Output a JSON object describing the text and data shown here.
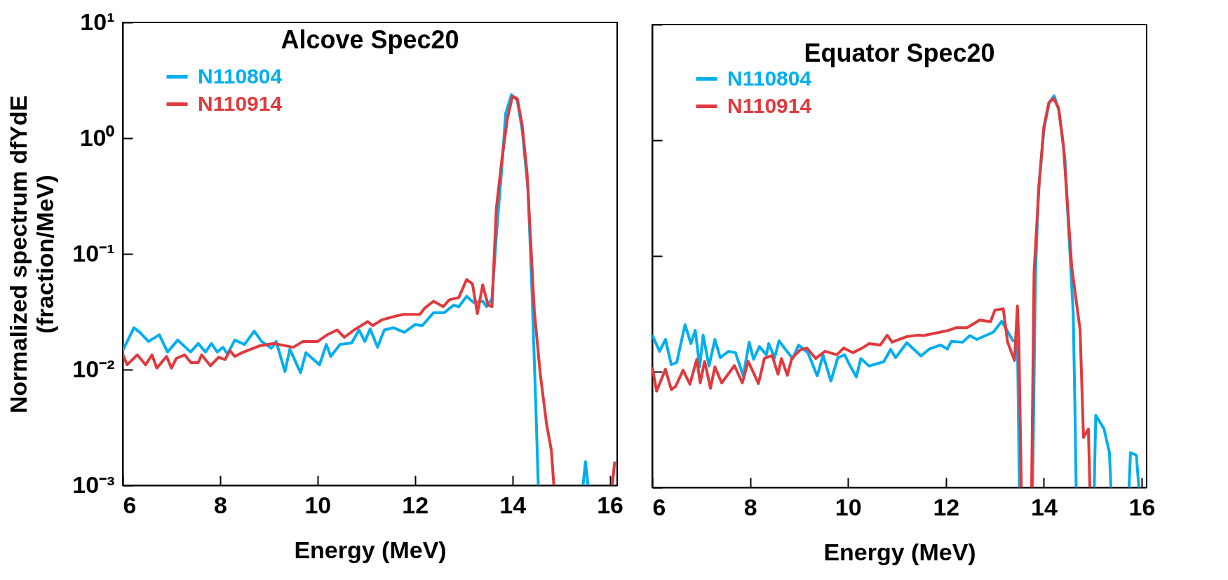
{
  "chart_data": [
    {
      "type": "line",
      "title": "Alcove Spec20",
      "xlabel": "Energy (MeV)",
      "ylabel": "Normalized spectrum dfYdE (fraction/MeV)",
      "log": true,
      "legend": "top left",
      "xlim": [
        6,
        16.15
      ],
      "xticks": [
        6,
        8,
        10,
        12,
        14,
        16
      ],
      "ylim": [
        0.001,
        10
      ],
      "yticks": [
        {
          "value": 0.001,
          "label": "10⁻³"
        },
        {
          "value": 0.01,
          "label": "10⁻²"
        },
        {
          "value": 0.1,
          "label": "10⁻¹"
        },
        {
          "value": 1,
          "label": "10⁰"
        },
        {
          "value": 10,
          "label": "10¹"
        }
      ],
      "series": [
        {
          "name": "N110804",
          "color": "#00aeef",
          "x": [
            6.0,
            6.23,
            6.35,
            6.53,
            6.75,
            6.92,
            7.13,
            7.39,
            7.55,
            7.7,
            7.82,
            7.94,
            8.06,
            8.15,
            8.3,
            8.5,
            8.7,
            8.85,
            9.05,
            9.15,
            9.33,
            9.43,
            9.65,
            9.76,
            10.04,
            10.18,
            10.27,
            10.46,
            10.7,
            10.85,
            10.97,
            11.08,
            11.23,
            11.37,
            11.56,
            11.78,
            12.0,
            12.15,
            12.38,
            12.6,
            12.79,
            12.9,
            13.06,
            13.2,
            13.39,
            13.47,
            13.58,
            13.67,
            13.8,
            13.86,
            13.98,
            14.1,
            14.2,
            14.32,
            14.4,
            14.48,
            14.53,
            15.0,
            15.45,
            15.5,
            15.55
          ],
          "values": [
            0.0146,
            0.023,
            0.021,
            0.0175,
            0.02,
            0.0142,
            0.018,
            0.0142,
            0.0168,
            0.0142,
            0.0168,
            0.0142,
            0.0156,
            0.0136,
            0.018,
            0.0165,
            0.0215,
            0.0175,
            0.0153,
            0.0175,
            0.0096,
            0.015,
            0.0094,
            0.014,
            0.011,
            0.0165,
            0.013,
            0.0165,
            0.017,
            0.022,
            0.0175,
            0.0225,
            0.0156,
            0.022,
            0.023,
            0.021,
            0.0245,
            0.024,
            0.031,
            0.031,
            0.036,
            0.035,
            0.043,
            0.038,
            0.039,
            0.035,
            0.041,
            0.144,
            0.69,
            1.63,
            2.37,
            2.12,
            1.18,
            0.36,
            0.05,
            0.0049,
            0.001,
            null,
            0.001,
            0.0016,
            0.001
          ]
        },
        {
          "name": "N110914",
          "color": "#e03a3e",
          "x": [
            6.0,
            6.09,
            6.3,
            6.47,
            6.6,
            6.7,
            6.9,
            7.0,
            7.1,
            7.27,
            7.4,
            7.55,
            7.62,
            7.8,
            7.97,
            8.1,
            8.2,
            8.3,
            8.45,
            8.8,
            9.1,
            9.5,
            9.7,
            10.0,
            10.2,
            10.4,
            10.55,
            10.75,
            11.03,
            11.13,
            11.33,
            11.6,
            11.77,
            12.1,
            12.2,
            12.38,
            12.58,
            12.7,
            12.9,
            13.06,
            13.18,
            13.28,
            13.39,
            13.5,
            13.58,
            13.67,
            13.79,
            13.9,
            14.0,
            14.1,
            14.2,
            14.3,
            14.45,
            14.57,
            14.7,
            14.8,
            14.85,
            15.5,
            16.05,
            16.1
          ],
          "values": [
            0.0136,
            0.011,
            0.0134,
            0.011,
            0.0134,
            0.0103,
            0.013,
            0.0103,
            0.0125,
            0.0134,
            0.0115,
            0.0115,
            0.0134,
            0.0108,
            0.0128,
            0.0122,
            0.0146,
            0.013,
            0.014,
            0.016,
            0.0168,
            0.0156,
            0.0175,
            0.0175,
            0.02,
            0.022,
            0.019,
            0.022,
            0.026,
            0.024,
            0.027,
            0.029,
            0.03,
            0.03,
            0.034,
            0.039,
            0.035,
            0.04,
            0.042,
            0.06,
            0.055,
            0.0305,
            0.054,
            0.036,
            0.035,
            0.248,
            0.69,
            1.5,
            2.3,
            2.2,
            1.3,
            0.5,
            0.032,
            0.0093,
            0.0034,
            0.002,
            0.001,
            null,
            0.001,
            0.0016
          ]
        }
      ]
    },
    {
      "type": "line",
      "title": "Equator Spec20",
      "xlabel": "Energy (MeV)",
      "log": true,
      "legend": "top left",
      "tick_labels": "x",
      "xlim": [
        6,
        16.1
      ],
      "xticks": [
        6,
        8,
        10,
        12,
        14,
        16
      ],
      "ylim": [
        0.001,
        10
      ],
      "yticks": [
        {
          "value": 0.001,
          "label": null
        },
        {
          "value": 0.01,
          "label": null
        },
        {
          "value": 0.1,
          "label": null
        },
        {
          "value": 1,
          "label": null
        },
        {
          "value": 10,
          "label": null
        }
      ],
      "series": [
        {
          "name": "N110804",
          "color": "#00aeef",
          "x": [
            6.0,
            6.15,
            6.27,
            6.39,
            6.5,
            6.67,
            6.79,
            6.88,
            6.97,
            7.04,
            7.16,
            7.28,
            7.39,
            7.56,
            7.7,
            7.86,
            7.98,
            8.07,
            8.19,
            8.33,
            8.38,
            8.5,
            8.59,
            8.73,
            8.87,
            8.99,
            9.18,
            9.37,
            9.49,
            9.65,
            9.79,
            9.93,
            10.03,
            10.17,
            10.26,
            10.43,
            10.73,
            10.87,
            10.97,
            11.2,
            11.49,
            11.66,
            11.89,
            12.03,
            12.11,
            12.34,
            12.49,
            12.63,
            12.97,
            13.14,
            13.37,
            13.46,
            13.5,
            13.65,
            13.77,
            13.83,
            13.89,
            14.0,
            14.11,
            14.21,
            14.31,
            14.43,
            14.51,
            14.6,
            14.63,
            14.66,
            14.85,
            15.03,
            15.06,
            15.23,
            15.34,
            15.37,
            15.55,
            15.74,
            15.77,
            15.89,
            15.94
          ],
          "values": [
            0.0207,
            0.015,
            0.019,
            0.0115,
            0.012,
            0.0255,
            0.0175,
            0.0228,
            0.011,
            0.0207,
            0.0112,
            0.019,
            0.0132,
            0.015,
            0.0146,
            0.0092,
            0.018,
            0.0128,
            0.0165,
            0.014,
            0.0175,
            0.0132,
            0.0185,
            0.0154,
            0.013,
            0.017,
            0.0146,
            0.0092,
            0.0139,
            0.0083,
            0.0132,
            0.014,
            0.0115,
            0.009,
            0.013,
            0.0112,
            0.0122,
            0.0156,
            0.0132,
            0.0178,
            0.0137,
            0.0157,
            0.017,
            0.0157,
            0.0183,
            0.018,
            0.0205,
            0.019,
            0.022,
            0.0273,
            0.0185,
            0.0185,
            0.001,
            null,
            0.001,
            0.072,
            0.36,
            1.23,
            2.12,
            2.42,
            1.8,
            0.69,
            0.16,
            0.032,
            0.0065,
            0.001,
            null,
            0.001,
            0.0042,
            0.0032,
            0.002,
            0.001,
            null,
            0.001,
            0.002,
            0.0019,
            0.001
          ]
        },
        {
          "name": "N110914",
          "color": "#e03a3e",
          "x": [
            6.0,
            6.09,
            6.27,
            6.39,
            6.48,
            6.63,
            6.77,
            6.91,
            6.98,
            7.07,
            7.19,
            7.28,
            7.42,
            7.68,
            7.84,
            7.96,
            8.17,
            8.29,
            8.45,
            8.57,
            8.64,
            8.76,
            8.85,
            9.02,
            9.16,
            9.34,
            9.53,
            9.77,
            9.91,
            10.1,
            10.29,
            10.43,
            10.66,
            10.8,
            10.9,
            11.18,
            11.42,
            11.54,
            12.03,
            12.2,
            12.43,
            12.57,
            12.69,
            12.91,
            13.0,
            13.17,
            13.26,
            13.4,
            13.46,
            13.49,
            13.54,
            13.65,
            13.75,
            13.8,
            13.9,
            14.0,
            14.1,
            14.2,
            14.3,
            14.4,
            14.57,
            14.74,
            14.81,
            14.91,
            14.94
          ],
          "values": [
            0.011,
            0.0068,
            0.0105,
            0.007,
            0.0075,
            0.0103,
            0.0078,
            0.0128,
            0.008,
            0.0123,
            0.0072,
            0.011,
            0.008,
            0.0113,
            0.008,
            0.0123,
            0.0079,
            0.013,
            0.0138,
            0.0095,
            0.013,
            0.0093,
            0.013,
            0.0154,
            0.016,
            0.013,
            0.015,
            0.014,
            0.016,
            0.0146,
            0.016,
            0.0175,
            0.017,
            0.0207,
            0.018,
            0.02,
            0.0207,
            0.0205,
            0.0226,
            0.024,
            0.024,
            0.026,
            0.028,
            0.027,
            0.034,
            0.035,
            0.018,
            0.0125,
            0.037,
            0.018,
            0.001,
            null,
            0.001,
            0.072,
            0.4,
            1.3,
            2.1,
            2.3,
            1.9,
            0.9,
            0.08,
            0.023,
            0.0027,
            0.0032,
            0.001
          ]
        }
      ]
    }
  ]
}
